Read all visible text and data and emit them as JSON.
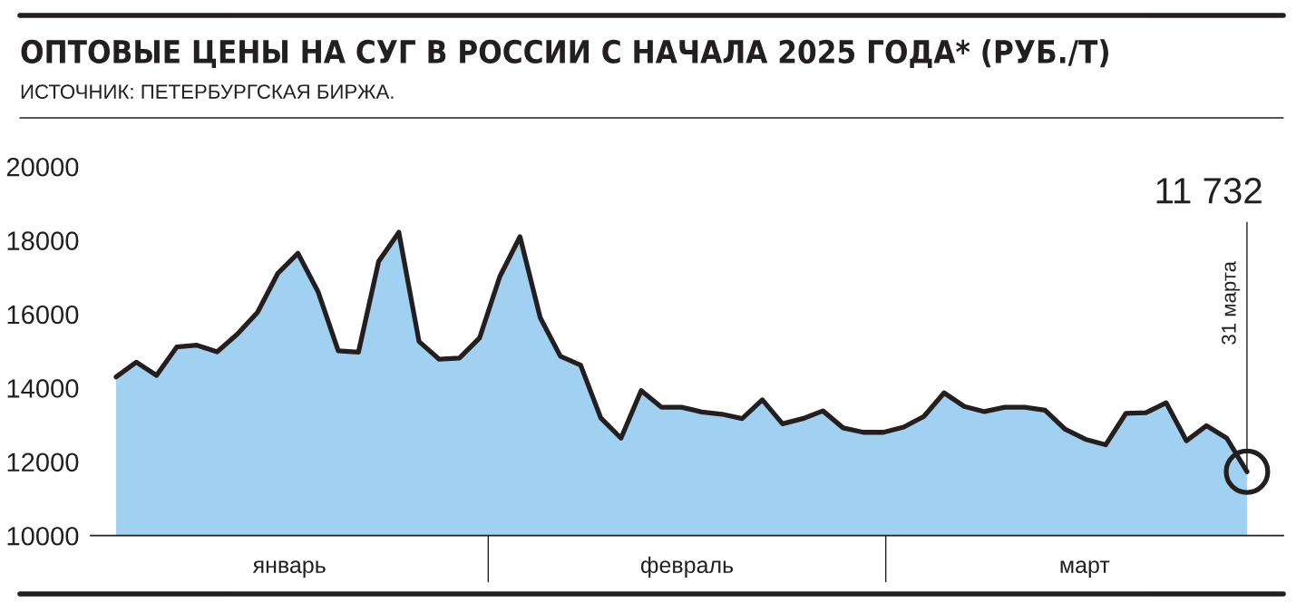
{
  "chart_data": {
    "type": "area",
    "title": "ОПТОВЫЕ ЦЕНЫ НА СУГ В РОССИИ С НАЧАЛА 2025 ГОДА* (РУБ./Т)",
    "subtitle": "ИСТОЧНИК: ПЕТЕРБУРГСКАЯ БИРЖА.",
    "categories": [
      null,
      null,
      null,
      null,
      null,
      null,
      null,
      null,
      null,
      null,
      null,
      null,
      null,
      null,
      null,
      null,
      null,
      null,
      null,
      null,
      null,
      null,
      null,
      null,
      null,
      null,
      null,
      null,
      null,
      null,
      null,
      null,
      null,
      null,
      null,
      null,
      null,
      null,
      null,
      null,
      null,
      null,
      null,
      null,
      null,
      null,
      null,
      null,
      null,
      null,
      null,
      null,
      null,
      null,
      null,
      null,
      null
    ],
    "series": [
      {
        "color": "#231f20",
        "values": [
          14300,
          14700,
          14340,
          15110,
          15160,
          14980,
          15460,
          16050,
          17100,
          17650,
          16610,
          15010,
          14970,
          17430,
          18220,
          15260,
          14780,
          14810,
          15360,
          17020,
          18100,
          15910,
          14860,
          14620,
          13190,
          12640,
          13930,
          13480,
          13480,
          13350,
          13290,
          13170,
          13680,
          13030,
          13170,
          13380,
          12920,
          12800,
          12800,
          12940,
          13230,
          13870,
          13500,
          13360,
          13480,
          13480,
          13400,
          12880,
          12610,
          12460,
          13310,
          13330,
          13600,
          12570,
          12980,
          12640,
          11732
        ]
      }
    ],
    "ylim": [
      10000,
      20000
    ],
    "yticks": [
      10000,
      12000,
      14000,
      16000,
      18000,
      20000
    ],
    "annotations": [
      "11 732",
      "31 марта",
      "январь",
      "февраль",
      "март"
    ]
  }
}
